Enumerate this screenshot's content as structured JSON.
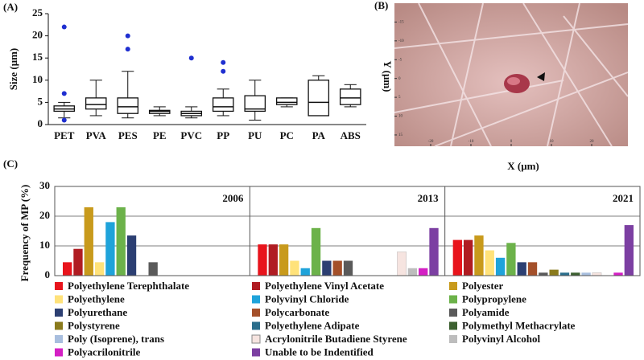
{
  "charts": [
    {
      "type": "box",
      "panel_label": "(A)",
      "ylabel": "Size (μm)",
      "categories": [
        "PET",
        "PVA",
        "PES",
        "PE",
        "PVC",
        "PP",
        "PU",
        "PC",
        "PA",
        "ABS"
      ],
      "boxes": [
        {
          "low": 1.5,
          "q1": 3,
          "median": 3.5,
          "q3": 4.2,
          "high": 5,
          "outliers": [
            22,
            7,
            1
          ]
        },
        {
          "low": 2,
          "q1": 3.5,
          "median": 4.5,
          "q3": 6,
          "high": 10,
          "outliers": []
        },
        {
          "low": 1.5,
          "q1": 2.5,
          "median": 4,
          "q3": 6,
          "high": 12,
          "outliers": [
            20,
            17
          ]
        },
        {
          "low": 2,
          "q1": 2.5,
          "median": 3,
          "q3": 3.2,
          "high": 4,
          "outliers": []
        },
        {
          "low": 1.5,
          "q1": 2,
          "median": 2.5,
          "q3": 3,
          "high": 4,
          "outliers": [
            15
          ]
        },
        {
          "low": 2,
          "q1": 3,
          "median": 4,
          "q3": 6,
          "high": 8,
          "outliers": [
            14,
            12
          ]
        },
        {
          "low": 1,
          "q1": 3,
          "median": 3.5,
          "q3": 6.5,
          "high": 10,
          "outliers": []
        },
        {
          "low": 4,
          "q1": 4.5,
          "median": 5,
          "q3": 6,
          "high": 6,
          "outliers": []
        },
        {
          "low": 2,
          "q1": 2,
          "median": 5,
          "q3": 10,
          "high": 11,
          "outliers": []
        },
        {
          "low": 4,
          "q1": 4.5,
          "median": 6,
          "q3": 8,
          "high": 9,
          "outliers": []
        }
      ],
      "outlier_color": "#1f2fd0",
      "ylim": [
        0,
        25
      ],
      "yticks": [
        0,
        5,
        10,
        15,
        20,
        25
      ]
    },
    {
      "type": "image",
      "panel_label": "(B)",
      "xlabel": "X (μm)",
      "ylabel": "Y (μm)",
      "xlim": [
        -29,
        29
      ],
      "xticks": [
        -20,
        -10,
        0,
        10,
        20
      ],
      "ylim": [
        -20,
        18
      ],
      "yticks": [
        -15,
        -10,
        -5,
        0,
        5,
        10,
        15
      ]
    },
    {
      "type": "bar",
      "panel_label": "(C)",
      "ylabel": "Frequency of MP (%)",
      "panels": [
        "2006",
        "2013",
        "2021"
      ],
      "ylim": [
        0,
        30
      ],
      "yticks": [
        0,
        10,
        20,
        30
      ],
      "grid": true,
      "series": [
        {
          "name": "Polyethylene Terephthalate",
          "color": "#e8141c",
          "values": [
            4.5,
            10.5,
            12
          ]
        },
        {
          "name": "Polyethylene Vinyl Acetate",
          "color": "#b01c22",
          "values": [
            9,
            10.5,
            12
          ]
        },
        {
          "name": "Polyester",
          "color": "#c89a1c",
          "values": [
            23,
            10.5,
            13.5
          ]
        },
        {
          "name": "Polyethylene",
          "color": "#ffe27a",
          "values": [
            4.5,
            5,
            8.5
          ]
        },
        {
          "name": "Polyvinyl Chloride",
          "color": "#1fa3da",
          "values": [
            18,
            2.5,
            6
          ]
        },
        {
          "name": "Polypropylene",
          "color": "#6cb24a",
          "values": [
            23,
            16,
            11
          ]
        },
        {
          "name": "Polyurethane",
          "color": "#2c3f72",
          "values": [
            13.5,
            5,
            4.5
          ]
        },
        {
          "name": "Polycarbonate",
          "color": "#a4502a",
          "values": [
            0,
            5,
            4.5
          ]
        },
        {
          "name": "Polyamide",
          "color": "#5a5a5a",
          "values": [
            4.5,
            5,
            1
          ]
        },
        {
          "name": "Polystyrene",
          "color": "#8a7a1c",
          "values": [
            0,
            0,
            2
          ]
        },
        {
          "name": "Polyethylene Adipate",
          "color": "#2b6e8c",
          "values": [
            0,
            0,
            1
          ]
        },
        {
          "name": "Polymethyl Methacrylate",
          "color": "#3c6030",
          "values": [
            0,
            0,
            1
          ]
        },
        {
          "name": "Poly (Isoprene), trans",
          "color": "#a8bede",
          "values": [
            0,
            0,
            1
          ]
        },
        {
          "name": "Acrylonitrile Butadiene Styrene",
          "color": "#f6e4e0",
          "values": [
            0,
            8,
            1
          ]
        },
        {
          "name": "Polyvinyl Alcohol",
          "color": "#bdbdbd",
          "values": [
            0,
            2.5,
            0
          ]
        },
        {
          "name": "Polyacrilonitrile",
          "color": "#d41fc4",
          "values": [
            0,
            2.5,
            1
          ]
        },
        {
          "name": "Unable to be Indentified",
          "color": "#7c3fa2",
          "values": [
            0,
            16,
            17
          ]
        }
      ]
    }
  ]
}
